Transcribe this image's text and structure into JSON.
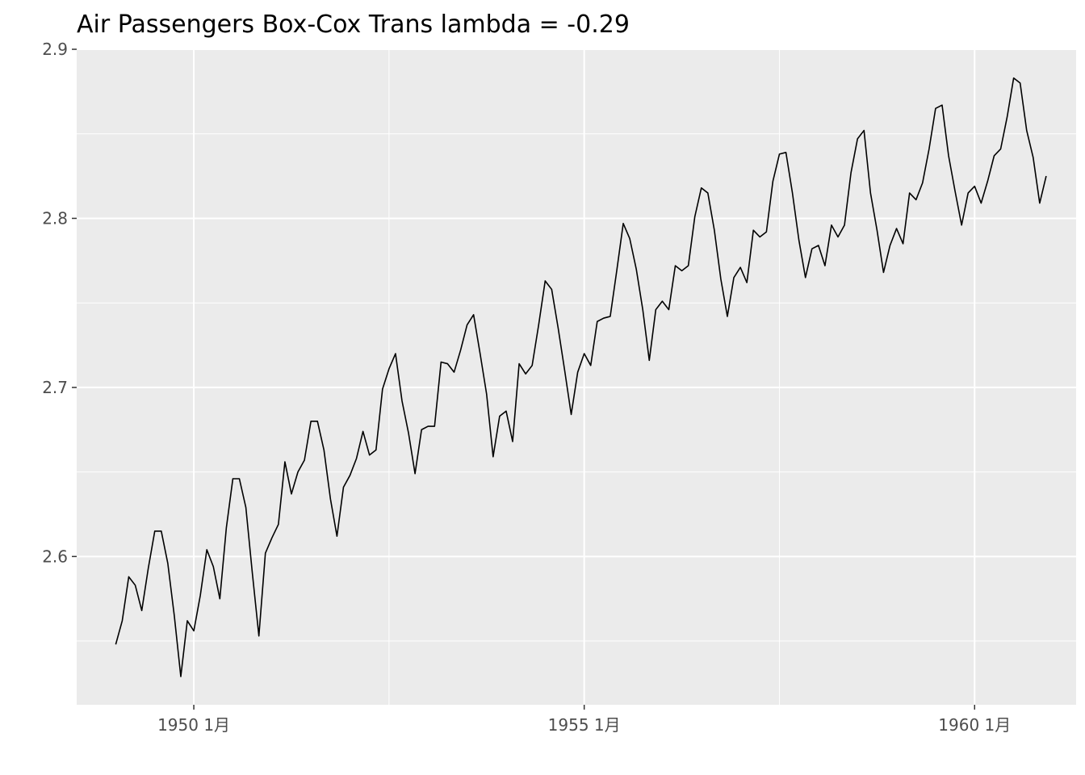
{
  "chart_data": {
    "type": "line",
    "title": "Air Passengers Box-Cox Trans lambda = -0.29",
    "xlabel": "",
    "ylabel": "",
    "x_start": "1949-01",
    "x_frequency": "monthly",
    "x_ticks": [
      {
        "value": 1950,
        "label": "1950 1月"
      },
      {
        "value": 1955,
        "label": "1955 1月"
      },
      {
        "value": 1960,
        "label": "1960 1月"
      }
    ],
    "y_ticks": [
      {
        "value": 2.6,
        "label": "2.6"
      },
      {
        "value": 2.7,
        "label": "2.7"
      },
      {
        "value": 2.8,
        "label": "2.8"
      },
      {
        "value": 2.9,
        "label": "2.9"
      }
    ],
    "xlim": [
      1948.5,
      1961.3
    ],
    "ylim": [
      2.5123,
      2.9005
    ],
    "grid": true,
    "series": [
      {
        "values": [
          2.548,
          2.562,
          2.588,
          2.583,
          2.568,
          2.593,
          2.615,
          2.615,
          2.596,
          2.565,
          2.529,
          2.562,
          2.556,
          2.577,
          2.604,
          2.594,
          2.575,
          2.617,
          2.646,
          2.646,
          2.629,
          2.59,
          2.553,
          2.602,
          2.611,
          2.619,
          2.656,
          2.637,
          2.65,
          2.657,
          2.68,
          2.68,
          2.663,
          2.634,
          2.612,
          2.641,
          2.648,
          2.658,
          2.674,
          2.66,
          2.663,
          2.699,
          2.711,
          2.72,
          2.692,
          2.673,
          2.649,
          2.675,
          2.677,
          2.677,
          2.715,
          2.714,
          2.709,
          2.722,
          2.737,
          2.743,
          2.72,
          2.696,
          2.659,
          2.683,
          2.686,
          2.668,
          2.714,
          2.708,
          2.713,
          2.737,
          2.763,
          2.758,
          2.735,
          2.71,
          2.684,
          2.709,
          2.72,
          2.713,
          2.739,
          2.741,
          2.742,
          2.769,
          2.797,
          2.788,
          2.77,
          2.746,
          2.716,
          2.746,
          2.751,
          2.746,
          2.772,
          2.769,
          2.772,
          2.801,
          2.818,
          2.815,
          2.793,
          2.764,
          2.742,
          2.765,
          2.771,
          2.762,
          2.793,
          2.789,
          2.792,
          2.822,
          2.838,
          2.839,
          2.815,
          2.787,
          2.765,
          2.782,
          2.784,
          2.772,
          2.796,
          2.789,
          2.796,
          2.827,
          2.847,
          2.852,
          2.815,
          2.793,
          2.768,
          2.784,
          2.794,
          2.785,
          2.815,
          2.811,
          2.821,
          2.841,
          2.865,
          2.867,
          2.837,
          2.816,
          2.796,
          2.815,
          2.819,
          2.809,
          2.822,
          2.837,
          2.841,
          2.86,
          2.883,
          2.88,
          2.852,
          2.836,
          2.809,
          2.825
        ]
      }
    ]
  }
}
